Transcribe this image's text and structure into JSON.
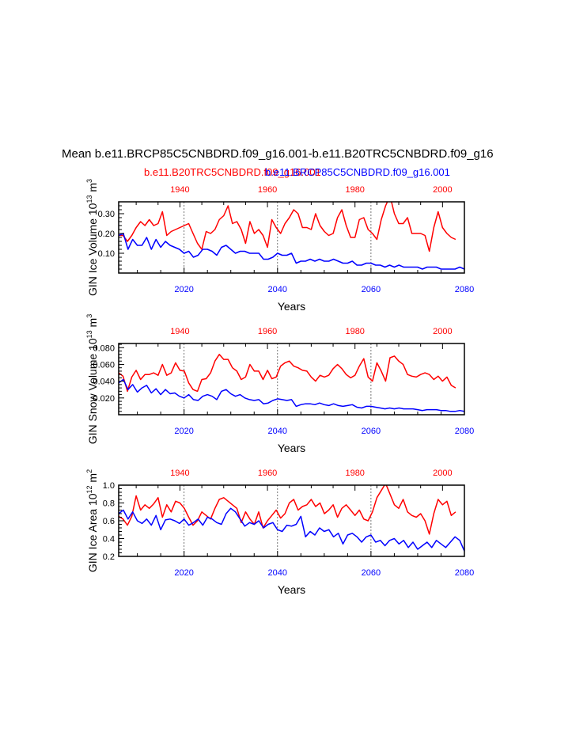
{
  "figure": {
    "title": "Mean b.e11.BRCP85C5CNBDRD.f09_g16.001-b.e11.B20TRC5CNBDRD.f09_g16",
    "legend_red": "b.e11.B20TRC5CNBDRD.f09_g16.001",
    "legend_blue": "b.e11.BRCP85C5CNBDRD.f09_g16.001",
    "colors": {
      "red": "#ff0000",
      "blue": "#0000ff",
      "axis": "#000000",
      "grid": "#555555"
    }
  },
  "chart_data": [
    {
      "type": "line",
      "ylabel": "GIN Ice Volume 10^13 m^3",
      "ylabel_main": "GIN Ice Volume 10",
      "ylabel_exp": "13",
      "ylabel_unit": " m",
      "ylabel_unit_exp": "3",
      "xlabel": "Years",
      "xlim": [
        2006,
        2080
      ],
      "xticks": [
        "2020",
        "2040",
        "2060",
        "2080"
      ],
      "top_xlim": [
        1926,
        2005
      ],
      "top_xticks": [
        "1940",
        "1960",
        "1980",
        "2000"
      ],
      "ylim": [
        0.0,
        0.36
      ],
      "yticks": [
        "0.10",
        "0.20",
        "0.30"
      ],
      "gridlines_x": [
        2020,
        2040,
        2060
      ],
      "series": [
        {
          "name": "b.e11.B20TRC5CNBDRD.f09_g16.001",
          "color": "#ff0000",
          "x_start": 1926,
          "values": [
            0.19,
            0.19,
            0.16,
            0.19,
            0.23,
            0.26,
            0.24,
            0.27,
            0.24,
            0.25,
            0.31,
            0.19,
            0.21,
            0.22,
            0.23,
            0.24,
            0.25,
            0.2,
            0.15,
            0.12,
            0.21,
            0.2,
            0.22,
            0.27,
            0.29,
            0.34,
            0.25,
            0.26,
            0.22,
            0.15,
            0.26,
            0.2,
            0.22,
            0.19,
            0.13,
            0.27,
            0.23,
            0.2,
            0.25,
            0.28,
            0.32,
            0.3,
            0.23,
            0.23,
            0.22,
            0.3,
            0.24,
            0.21,
            0.19,
            0.2,
            0.28,
            0.32,
            0.24,
            0.18,
            0.18,
            0.27,
            0.28,
            0.22,
            0.2,
            0.17,
            0.27,
            0.34,
            0.39,
            0.3,
            0.25,
            0.25,
            0.28,
            0.2,
            0.2,
            0.2,
            0.19,
            0.11,
            0.23,
            0.31,
            0.23,
            0.2,
            0.18,
            0.17
          ]
        },
        {
          "name": "b.e11.BRCP85C5CNBDRD.f09_g16.001",
          "color": "#0000ff",
          "x_start": 2006,
          "values": [
            0.19,
            0.2,
            0.12,
            0.17,
            0.14,
            0.14,
            0.18,
            0.12,
            0.17,
            0.13,
            0.16,
            0.14,
            0.13,
            0.12,
            0.1,
            0.11,
            0.08,
            0.09,
            0.12,
            0.12,
            0.11,
            0.09,
            0.13,
            0.14,
            0.12,
            0.1,
            0.11,
            0.11,
            0.1,
            0.1,
            0.1,
            0.07,
            0.07,
            0.08,
            0.1,
            0.09,
            0.09,
            0.1,
            0.05,
            0.06,
            0.06,
            0.07,
            0.06,
            0.07,
            0.06,
            0.06,
            0.07,
            0.06,
            0.05,
            0.05,
            0.06,
            0.04,
            0.04,
            0.05,
            0.05,
            0.04,
            0.04,
            0.03,
            0.04,
            0.03,
            0.04,
            0.03,
            0.03,
            0.03,
            0.03,
            0.02,
            0.03,
            0.03,
            0.03,
            0.02,
            0.02,
            0.02,
            0.02,
            0.03,
            0.02
          ]
        }
      ]
    },
    {
      "type": "line",
      "ylabel": "GIN Snow Volume 10^13 m^3",
      "ylabel_main": "GIN Snow Volume 10",
      "ylabel_exp": "13",
      "ylabel_unit": " m",
      "ylabel_unit_exp": "3",
      "xlabel": "Years",
      "xlim": [
        2006,
        2080
      ],
      "xticks": [
        "2020",
        "2040",
        "2060",
        "2080"
      ],
      "top_xlim": [
        1926,
        2005
      ],
      "top_xticks": [
        "1940",
        "1960",
        "1980",
        "2000"
      ],
      "ylim": [
        0.0,
        0.085
      ],
      "yticks": [
        "0.020",
        "0.040",
        "0.060",
        "0.080"
      ],
      "gridlines_x": [
        2020,
        2040,
        2060
      ],
      "series": [
        {
          "name": "b.e11.B20TRC5CNBDRD.f09_g16.001",
          "color": "#ff0000",
          "x_start": 1926,
          "values": [
            0.05,
            0.046,
            0.028,
            0.045,
            0.053,
            0.042,
            0.048,
            0.048,
            0.05,
            0.047,
            0.06,
            0.047,
            0.05,
            0.062,
            0.053,
            0.052,
            0.038,
            0.03,
            0.028,
            0.042,
            0.043,
            0.05,
            0.064,
            0.072,
            0.066,
            0.066,
            0.056,
            0.052,
            0.042,
            0.045,
            0.06,
            0.052,
            0.052,
            0.042,
            0.053,
            0.043,
            0.045,
            0.058,
            0.062,
            0.064,
            0.058,
            0.056,
            0.053,
            0.052,
            0.045,
            0.04,
            0.047,
            0.045,
            0.047,
            0.055,
            0.06,
            0.055,
            0.048,
            0.044,
            0.047,
            0.058,
            0.067,
            0.045,
            0.04,
            0.062,
            0.052,
            0.04,
            0.068,
            0.07,
            0.064,
            0.06,
            0.048,
            0.046,
            0.045,
            0.048,
            0.05,
            0.048,
            0.042,
            0.046,
            0.04,
            0.045,
            0.035,
            0.032
          ]
        },
        {
          "name": "b.e11.BRCP85C5CNBDRD.f09_g16.001",
          "color": "#0000ff",
          "x_start": 2006,
          "values": [
            0.038,
            0.042,
            0.03,
            0.036,
            0.027,
            0.032,
            0.035,
            0.026,
            0.031,
            0.024,
            0.03,
            0.025,
            0.026,
            0.022,
            0.02,
            0.024,
            0.018,
            0.017,
            0.022,
            0.024,
            0.022,
            0.018,
            0.028,
            0.03,
            0.025,
            0.022,
            0.024,
            0.02,
            0.018,
            0.017,
            0.018,
            0.013,
            0.014,
            0.017,
            0.019,
            0.018,
            0.017,
            0.018,
            0.01,
            0.012,
            0.013,
            0.013,
            0.012,
            0.014,
            0.012,
            0.011,
            0.013,
            0.011,
            0.01,
            0.011,
            0.012,
            0.009,
            0.008,
            0.01,
            0.01,
            0.009,
            0.008,
            0.007,
            0.008,
            0.007,
            0.008,
            0.007,
            0.007,
            0.007,
            0.006,
            0.005,
            0.006,
            0.006,
            0.006,
            0.005,
            0.005,
            0.004,
            0.004,
            0.005,
            0.004
          ]
        }
      ]
    },
    {
      "type": "line",
      "ylabel": "GIN Ice Area 10^12 m^2",
      "ylabel_main": "GIN Ice Area 10",
      "ylabel_exp": "12",
      "ylabel_unit": " m",
      "ylabel_unit_exp": "2",
      "xlabel": "Years",
      "xlim": [
        2006,
        2080
      ],
      "xticks": [
        "2020",
        "2040",
        "2060",
        "2080"
      ],
      "top_xlim": [
        1926,
        2005
      ],
      "top_xticks": [
        "1940",
        "1960",
        "1980",
        "2000"
      ],
      "ylim": [
        0.2,
        1.0
      ],
      "yticks": [
        "0.2",
        "0.4",
        "0.6",
        "0.8",
        "1.0"
      ],
      "gridlines_x": [
        2020,
        2040,
        2060
      ],
      "series": [
        {
          "name": "b.e11.B20TRC5CNBDRD.f09_g16.001",
          "color": "#ff0000",
          "x_start": 1926,
          "values": [
            0.65,
            0.62,
            0.55,
            0.65,
            0.88,
            0.72,
            0.78,
            0.74,
            0.79,
            0.86,
            0.64,
            0.78,
            0.7,
            0.82,
            0.8,
            0.74,
            0.64,
            0.55,
            0.6,
            0.7,
            0.66,
            0.62,
            0.74,
            0.84,
            0.86,
            0.82,
            0.78,
            0.74,
            0.58,
            0.7,
            0.62,
            0.56,
            0.7,
            0.52,
            0.6,
            0.66,
            0.72,
            0.63,
            0.68,
            0.8,
            0.84,
            0.72,
            0.76,
            0.78,
            0.84,
            0.76,
            0.8,
            0.68,
            0.72,
            0.78,
            0.64,
            0.74,
            0.78,
            0.72,
            0.66,
            0.72,
            0.62,
            0.6,
            0.7,
            0.86,
            0.94,
            1.02,
            0.9,
            0.78,
            0.74,
            0.84,
            0.7,
            0.66,
            0.64,
            0.68,
            0.6,
            0.45,
            0.68,
            0.84,
            0.78,
            0.82,
            0.66,
            0.7
          ]
        },
        {
          "name": "b.e11.BRCP85C5CNBDRD.f09_g16.001",
          "color": "#0000ff",
          "x_start": 2006,
          "values": [
            0.68,
            0.72,
            0.62,
            0.7,
            0.6,
            0.57,
            0.62,
            0.55,
            0.66,
            0.5,
            0.61,
            0.62,
            0.6,
            0.57,
            0.62,
            0.55,
            0.58,
            0.62,
            0.55,
            0.64,
            0.62,
            0.58,
            0.56,
            0.68,
            0.74,
            0.7,
            0.62,
            0.54,
            0.58,
            0.56,
            0.6,
            0.52,
            0.56,
            0.58,
            0.5,
            0.48,
            0.55,
            0.54,
            0.56,
            0.65,
            0.42,
            0.48,
            0.44,
            0.52,
            0.48,
            0.5,
            0.42,
            0.46,
            0.34,
            0.44,
            0.46,
            0.42,
            0.36,
            0.42,
            0.44,
            0.36,
            0.38,
            0.32,
            0.38,
            0.4,
            0.34,
            0.38,
            0.3,
            0.36,
            0.28,
            0.32,
            0.36,
            0.3,
            0.38,
            0.34,
            0.3,
            0.36,
            0.42,
            0.38,
            0.26,
            0.24,
            0.22,
            0.22,
            0.2
          ]
        }
      ]
    }
  ]
}
